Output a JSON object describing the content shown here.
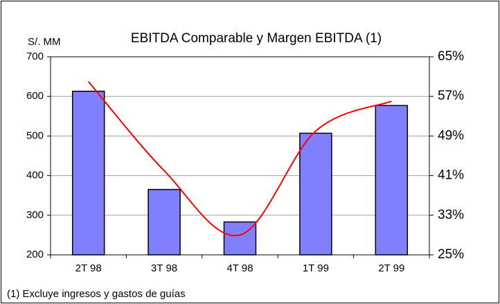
{
  "chart_data": {
    "type": "bar",
    "title": "EBITDA Comparable y Margen EBITDA (1)",
    "y_label": "S/. MM",
    "footnote": "(1) Excluye ingresos y gastos de guías",
    "categories": [
      "2T 98",
      "3T 98",
      "4T 98",
      "1T 99",
      "2T 99"
    ],
    "series": [
      {
        "type": "bar",
        "color": "#8080ff",
        "values": [
          613,
          365,
          283,
          507,
          577
        ]
      },
      {
        "type": "line",
        "color": "#ff0000",
        "axis": "y2",
        "values": [
          60,
          42,
          29,
          50,
          56
        ]
      }
    ],
    "ylim": [
      200,
      700
    ],
    "yticks": [
      200,
      300,
      400,
      500,
      600,
      700
    ],
    "y2lim": [
      25,
      65
    ],
    "y2ticks": [
      {
        "value": 25,
        "label": "25%"
      },
      {
        "value": 33,
        "label": "33%"
      },
      {
        "value": 41,
        "label": "41%"
      },
      {
        "value": 49,
        "label": "49%"
      },
      {
        "value": 57,
        "label": "57%"
      },
      {
        "value": 65,
        "label": "65%"
      }
    ],
    "grid": true
  }
}
